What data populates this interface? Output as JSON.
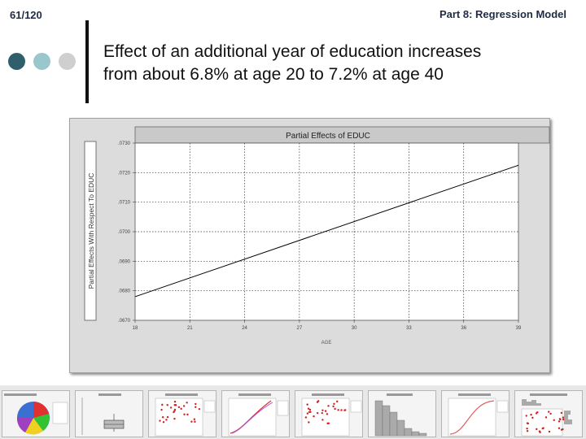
{
  "header": {
    "slide_number": "61/120",
    "section_title": "Part 8: Regression Model"
  },
  "headline": {
    "line1": "Effect of an additional year of education increases",
    "line2": "from about 6.8% at age 20 to 7.2% at age 40"
  },
  "colors": {
    "dot_dark": "#2f5f6a",
    "dot_light": "#99c7cd",
    "dot_grey": "#cfcfcf",
    "plot_background": "#ffffff",
    "line": "#000000"
  },
  "chart_data": {
    "type": "line",
    "title": "Partial Effects of EDUC",
    "xlabel": "AGE",
    "ylabel": "Partial Effects With Respect To EDUC",
    "xlim": [
      18,
      39
    ],
    "ylim": [
      0.067,
      0.073
    ],
    "x_ticks": [
      "18",
      "21",
      "24",
      "27",
      "30",
      "33",
      "36",
      "39"
    ],
    "x_tick_values": [
      18,
      21,
      24,
      27,
      30,
      33,
      36,
      39
    ],
    "y_ticks": [
      ".0670",
      ".0680",
      ".0690",
      ".0700",
      ".0710",
      ".0720",
      ".0730"
    ],
    "y_tick_values": [
      0.067,
      0.068,
      0.069,
      0.07,
      0.071,
      0.072,
      0.073
    ],
    "grid": true,
    "series": [
      {
        "x": [
          18,
          39
        ],
        "y": [
          0.0678,
          0.07225
        ]
      }
    ]
  },
  "thumbnails": [
    {
      "kind": "pie"
    },
    {
      "kind": "boxplot"
    },
    {
      "kind": "scatter"
    },
    {
      "kind": "curve-scatter"
    },
    {
      "kind": "scatter"
    },
    {
      "kind": "histogram"
    },
    {
      "kind": "s-curve"
    },
    {
      "kind": "hist-scatter"
    }
  ]
}
